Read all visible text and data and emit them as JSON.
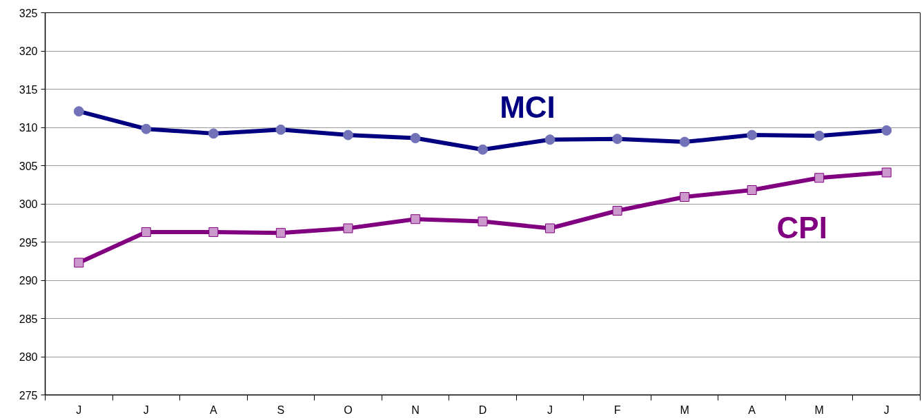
{
  "chart_data": {
    "type": "line",
    "categories": [
      "J",
      "J",
      "A",
      "S",
      "O",
      "N",
      "D",
      "J",
      "F",
      "M",
      "A",
      "M",
      "J"
    ],
    "series": [
      {
        "name": "MCI",
        "color": "#000080",
        "marker": "circle",
        "values": [
          312.1,
          309.8,
          309.2,
          309.7,
          309.0,
          308.6,
          307.1,
          308.4,
          308.5,
          308.1,
          309.0,
          308.9,
          309.6
        ]
      },
      {
        "name": "CPI",
        "color": "#800080",
        "marker": "square",
        "values": [
          292.3,
          296.3,
          296.3,
          296.2,
          296.8,
          298.0,
          297.7,
          296.8,
          299.1,
          300.9,
          301.8,
          303.4,
          304.1
        ]
      }
    ],
    "ylim": [
      275,
      325
    ],
    "yticks": [
      275,
      280,
      285,
      290,
      295,
      300,
      305,
      310,
      315,
      320,
      325
    ],
    "grid": "y",
    "line_style": "solid"
  }
}
